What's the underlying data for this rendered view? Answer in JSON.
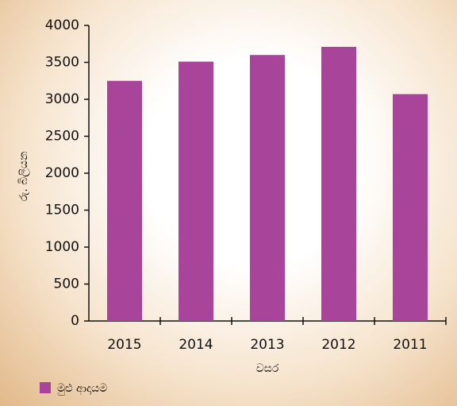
{
  "chart_data": {
    "type": "bar",
    "y_label": "රු. බිලියන",
    "x_label": "වසර",
    "categories": [
      "2015",
      "2014",
      "2013",
      "2012",
      "2011"
    ],
    "series": [
      {
        "name": "මුළු ආදායම",
        "color": "#a8449a",
        "values": [
          3250,
          3510,
          3600,
          3710,
          3070
        ]
      }
    ],
    "ylim": [
      0,
      4000
    ],
    "yticks": [
      0,
      500,
      1000,
      1500,
      2000,
      2500,
      3000,
      3500,
      4000
    ],
    "legend": "bottom-left"
  }
}
